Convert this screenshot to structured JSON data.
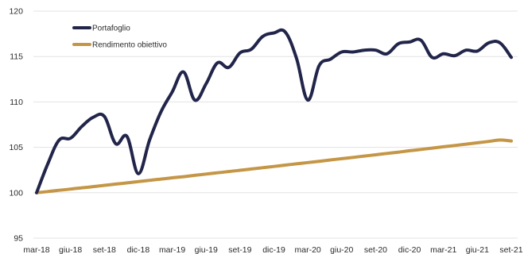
{
  "chart_data": {
    "type": "line",
    "title": "",
    "xlabel": "",
    "ylabel": "",
    "ylim": [
      95,
      120
    ],
    "y_ticks": [
      95,
      100,
      105,
      110,
      115,
      120
    ],
    "grid": "horizontal",
    "legend_position": "top-left",
    "x_tick_labels": [
      "mar-18",
      "giu-18",
      "set-18",
      "dic-18",
      "mar-19",
      "giu-19",
      "set-19",
      "dic-19",
      "mar-20",
      "giu-20",
      "set-20",
      "dic-20",
      "mar-21",
      "giu-21",
      "set-21"
    ],
    "x": [
      "mar-18",
      "apr-18",
      "mag-18",
      "giu-18",
      "lug-18",
      "ago-18",
      "set-18",
      "ott-18",
      "nov-18",
      "dic-18",
      "gen-19",
      "feb-19",
      "mar-19",
      "apr-19",
      "mag-19",
      "giu-19",
      "lug-19",
      "ago-19",
      "set-19",
      "ott-19",
      "nov-19",
      "dic-19",
      "gen-20",
      "feb-20",
      "mar-20",
      "apr-20",
      "mag-20",
      "giu-20",
      "lug-20",
      "ago-20",
      "set-20",
      "ott-20",
      "nov-20",
      "dic-20",
      "gen-21",
      "feb-21",
      "mar-21",
      "apr-21",
      "mag-21",
      "giu-21",
      "lug-21",
      "ago-21",
      "set-21"
    ],
    "series": [
      {
        "name": "Portafoglio",
        "color": "#22254a",
        "values": [
          100.0,
          103.2,
          105.8,
          106.0,
          107.3,
          108.3,
          108.4,
          105.4,
          106.2,
          102.1,
          105.8,
          108.9,
          111.1,
          113.3,
          110.2,
          112.0,
          114.3,
          113.8,
          115.4,
          115.8,
          117.2,
          117.6,
          117.7,
          114.8,
          110.2,
          114.0,
          114.7,
          115.5,
          115.5,
          115.7,
          115.7,
          115.3,
          116.4,
          116.6,
          116.8,
          114.9,
          115.3,
          115.1,
          115.7,
          115.6,
          116.5,
          116.5,
          114.9
        ]
      },
      {
        "name": "Rendimento obiettivo",
        "color": "#c49646",
        "values": [
          100.0,
          100.13,
          100.27,
          100.4,
          100.54,
          100.67,
          100.81,
          100.95,
          101.08,
          101.22,
          101.36,
          101.5,
          101.64,
          101.77,
          101.91,
          102.05,
          102.19,
          102.33,
          102.47,
          102.61,
          102.75,
          102.89,
          103.04,
          103.18,
          103.32,
          103.46,
          103.61,
          103.75,
          103.89,
          104.04,
          104.18,
          104.33,
          104.47,
          104.62,
          104.76,
          104.91,
          105.06,
          105.2,
          105.35,
          105.5,
          105.65,
          105.8,
          105.7
        ]
      }
    ]
  }
}
